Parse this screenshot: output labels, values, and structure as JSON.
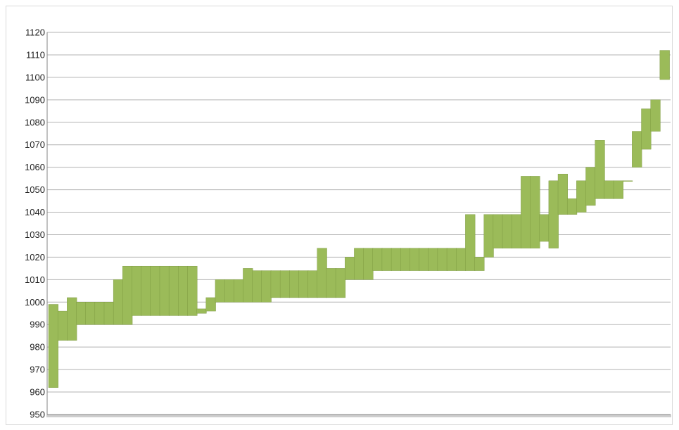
{
  "chart_data": {
    "type": "bar",
    "title": "",
    "xlabel": "",
    "ylabel": "",
    "ylim": [
      950,
      1120
    ],
    "y_ticks": [
      950,
      960,
      970,
      980,
      990,
      1000,
      1010,
      1020,
      1030,
      1040,
      1050,
      1060,
      1070,
      1080,
      1090,
      1100,
      1110,
      1120
    ],
    "y_tick_labels": [
      "950",
      "960",
      "970",
      "980",
      "990",
      "1000",
      "1010",
      "1020",
      "1030",
      "1040",
      "1050",
      "1060",
      "1070",
      "1080",
      "1090",
      "1100",
      "1110",
      "1120"
    ],
    "grid": true,
    "bar_color": "#9bbb59",
    "bar_edge_color": "#77933c",
    "axis_color": "#868686",
    "grid_color": "#b3b3b3",
    "series": [
      {
        "values_low": [
          962,
          983,
          983,
          990,
          990,
          990,
          990,
          990,
          990,
          994,
          994,
          994,
          994,
          994,
          994,
          994,
          995,
          996,
          1000,
          1000,
          1000,
          1000,
          1000,
          1000,
          1002,
          1002,
          1002,
          1002,
          1002,
          1002,
          1002,
          1002,
          1010,
          1010,
          1010,
          1014,
          1014,
          1014,
          1014,
          1014,
          1014,
          1014,
          1014,
          1014,
          1014,
          1014,
          1014,
          1020,
          1024,
          1024,
          1024,
          1024,
          1024,
          1027,
          1024,
          1039,
          1039,
          1040,
          1043,
          1046,
          1046,
          1046,
          1056,
          1060,
          1068,
          1076,
          1099
        ],
        "values_high": [
          999,
          996,
          1002,
          1000,
          1000,
          1000,
          1000,
          1010,
          1016,
          1016,
          1016,
          1016,
          1016,
          1016,
          1016,
          1016,
          997,
          1002,
          1010,
          1010,
          1010,
          1015,
          1014,
          1014,
          1014,
          1014,
          1014,
          1014,
          1014,
          1024,
          1015,
          1015,
          1020,
          1024,
          1024,
          1024,
          1024,
          1024,
          1024,
          1024,
          1024,
          1024,
          1024,
          1024,
          1024,
          1039,
          1020,
          1039,
          1039,
          1039,
          1039,
          1056,
          1056,
          1039,
          1054,
          1057,
          1046,
          1054,
          1060,
          1072,
          1054,
          1054,
          1054,
          1076,
          1086,
          1090,
          1112
        ]
      }
    ]
  }
}
